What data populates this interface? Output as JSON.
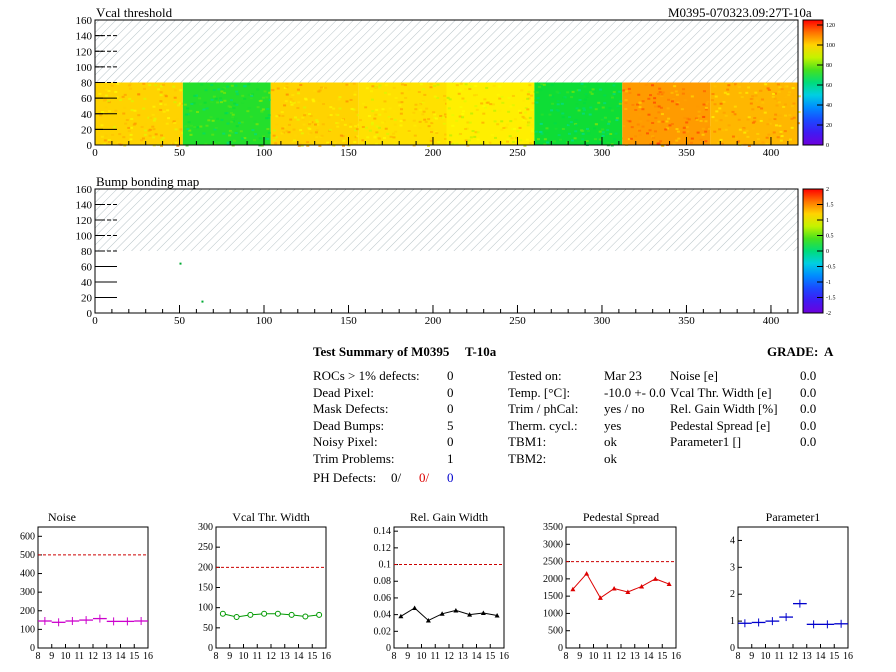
{
  "header": {
    "left_title": "Vcal threshold",
    "right_title": "M0395-070323.09:27T-10a"
  },
  "bump_title": "Bump bonding map",
  "summary": {
    "title": "Test Summary of M0395",
    "tag": "T-10a",
    "grade_label": "GRADE:",
    "grade": "A",
    "defects": [
      {
        "label": "ROCs > 1% defects:",
        "value": "0"
      },
      {
        "label": "Dead Pixel:",
        "value": "0"
      },
      {
        "label": "Mask Defects:",
        "value": "0"
      },
      {
        "label": "Dead Bumps:",
        "value": "5"
      },
      {
        "label": "Noisy Pixel:",
        "value": "0"
      },
      {
        "label": "Trim Problems:",
        "value": "1"
      }
    ],
    "ph": {
      "label": "PH Defects:",
      "v1": "0/",
      "v2": "0/",
      "v3": "0"
    },
    "tests": [
      {
        "label": "Tested on:",
        "value": "Mar 23"
      },
      {
        "label": "Temp. [°C]:",
        "value": "-10.0 +- 0.0"
      },
      {
        "label": "Trim / phCal:",
        "value": "yes / no"
      },
      {
        "label": "Therm. cycl.:",
        "value": "yes"
      },
      {
        "label": "TBM1:",
        "value": "ok"
      },
      {
        "label": "TBM2:",
        "value": "ok"
      }
    ],
    "params": [
      {
        "label": "Noise [e]",
        "value": "0.0"
      },
      {
        "label": "Vcal Thr. Width [e]",
        "value": "0.0"
      },
      {
        "label": "Rel. Gain Width [%]",
        "value": "0.0"
      },
      {
        "label": "Pedestal Spread [e]",
        "value": "0.0"
      },
      {
        "label": "Parameter1 []",
        "value": "0.0"
      }
    ]
  },
  "colors": {
    "magenta": "#cc00cc",
    "green": "#009900",
    "black": "#000000",
    "red": "#dd0000",
    "blue": "#0000cc",
    "limit": "#cc0000"
  },
  "chart_data": [
    {
      "type": "heatmap",
      "title": "Vcal threshold",
      "x_ticks": [
        "0",
        "50",
        "100",
        "150",
        "200",
        "250",
        "300",
        "350",
        "400"
      ],
      "y_ticks": [
        "0",
        "20",
        "40",
        "60",
        "80",
        "100",
        "120",
        "140",
        "160"
      ],
      "xlim": [
        0,
        416
      ],
      "ylim": [
        0,
        160
      ],
      "filled_rows": [
        0,
        80
      ],
      "colorbar_ticks": [
        "0",
        "20",
        "40",
        "60",
        "80",
        "100",
        "120"
      ],
      "colorbar_range": [
        0,
        125
      ],
      "roc_means": [
        100,
        72,
        100,
        98,
        96,
        70,
        108,
        104
      ]
    },
    {
      "type": "heatmap",
      "title": "Bump bonding map",
      "x_ticks": [
        "0",
        "50",
        "100",
        "150",
        "200",
        "250",
        "300",
        "350",
        "400"
      ],
      "y_ticks": [
        "0",
        "20",
        "40",
        "60",
        "80",
        "100",
        "120",
        "140",
        "160"
      ],
      "xlim": [
        0,
        416
      ],
      "ylim": [
        0,
        160
      ],
      "filled_rows": [
        0,
        80
      ],
      "colorbar_ticks": [
        "-2",
        "-1.5",
        "-1",
        "-0.5",
        "0",
        "0.5",
        "1",
        "1.5",
        "2"
      ],
      "colorbar_range": [
        -2,
        2
      ],
      "marks": [
        {
          "x": 50,
          "y": 65
        },
        {
          "x": 63,
          "y": 16
        }
      ]
    },
    {
      "type": "scatter",
      "title": "Noise",
      "x_ticks": [
        "8",
        "9",
        "10",
        "11",
        "12",
        "13",
        "14",
        "15",
        "16"
      ],
      "y_ticks": [
        "0",
        "100",
        "200",
        "300",
        "400",
        "500",
        "600"
      ],
      "xlim": [
        8,
        16
      ],
      "ylim": [
        0,
        650
      ],
      "limit": 500,
      "color": "magenta",
      "errorbars": true,
      "x": [
        8.5,
        9.5,
        10.5,
        11.5,
        12.5,
        13.5,
        14.5,
        15.5
      ],
      "y": [
        145,
        138,
        145,
        150,
        158,
        143,
        143,
        145
      ]
    },
    {
      "type": "line",
      "title": "Vcal Thr. Width",
      "x_ticks": [
        "8",
        "9",
        "10",
        "11",
        "12",
        "13",
        "14",
        "15",
        "16"
      ],
      "y_ticks": [
        "0",
        "50",
        "100",
        "150",
        "200",
        "250",
        "300"
      ],
      "xlim": [
        8,
        16
      ],
      "ylim": [
        0,
        300
      ],
      "limit": 200,
      "color": "green",
      "marker": "circle",
      "x": [
        8.5,
        9.5,
        10.5,
        11.5,
        12.5,
        13.5,
        14.5,
        15.5
      ],
      "y": [
        85,
        77,
        82,
        85,
        85,
        82,
        78,
        82
      ]
    },
    {
      "type": "line",
      "title": "Rel. Gain Width",
      "x_ticks": [
        "8",
        "9",
        "10",
        "11",
        "12",
        "13",
        "14",
        "15",
        "16"
      ],
      "y_ticks": [
        "0",
        "0.02",
        "0.04",
        "0.06",
        "0.08",
        "0.1",
        "0.12",
        "0.14"
      ],
      "xlim": [
        8,
        16
      ],
      "ylim": [
        0,
        0.145
      ],
      "limit": 0.1,
      "color": "black",
      "marker": "tri",
      "x": [
        8.5,
        9.5,
        10.5,
        11.5,
        12.5,
        13.5,
        14.5,
        15.5
      ],
      "y": [
        0.038,
        0.048,
        0.033,
        0.041,
        0.045,
        0.04,
        0.042,
        0.039
      ]
    },
    {
      "type": "line",
      "title": "Pedestal Spread",
      "x_ticks": [
        "8",
        "9",
        "10",
        "11",
        "12",
        "13",
        "14",
        "15",
        "16"
      ],
      "y_ticks": [
        "0",
        "500",
        "1000",
        "1500",
        "2000",
        "2500",
        "3000",
        "3500"
      ],
      "xlim": [
        8,
        16
      ],
      "ylim": [
        0,
        3500
      ],
      "limit": 2500,
      "color": "red",
      "marker": "tri",
      "x": [
        8.5,
        9.5,
        10.5,
        11.5,
        12.5,
        13.5,
        14.5,
        15.5
      ],
      "y": [
        1700,
        2150,
        1450,
        1720,
        1620,
        1780,
        2000,
        1850
      ]
    },
    {
      "type": "scatter",
      "title": "Parameter1",
      "x_ticks": [
        "8",
        "9",
        "10",
        "11",
        "12",
        "13",
        "14",
        "15",
        "16"
      ],
      "y_ticks": [
        "0",
        "1",
        "2",
        "3",
        "4"
      ],
      "xlim": [
        8,
        16
      ],
      "ylim": [
        0,
        4.5
      ],
      "limit": null,
      "color": "blue",
      "errorbars": true,
      "x": [
        8.5,
        9.5,
        10.5,
        11.5,
        12.5,
        13.5,
        14.5,
        15.5
      ],
      "y": [
        0.92,
        0.95,
        1.0,
        1.15,
        1.65,
        0.88,
        0.88,
        0.9
      ]
    }
  ]
}
